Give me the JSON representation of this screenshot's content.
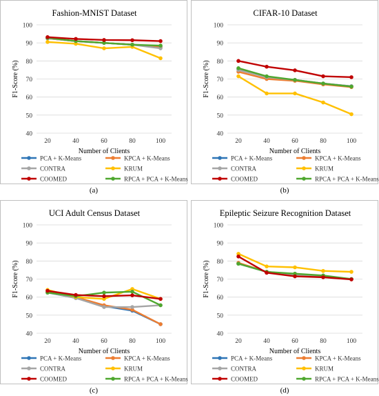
{
  "colors": {
    "PCA + K-Means": "#2e75b6",
    "KPCA + K-Means": "#ed7d31",
    "CONTRA": "#a5a5a5",
    "KRUM": "#ffc000",
    "COOMED": "#c00000",
    "RPCA + PCA + K-Means": "#4ea72e"
  },
  "legend_order": [
    "PCA + K-Means",
    "KPCA + K-Means",
    "CONTRA",
    "KRUM",
    "COOMED",
    "RPCA + PCA + K-Means"
  ],
  "chart_data": [
    {
      "type": "line",
      "caption": "(a)",
      "title": "Fashion-MNIST Dataset",
      "xlabel": "Number of Clients",
      "ylabel": "F1-Score (%)",
      "x": [
        20,
        40,
        60,
        80,
        100
      ],
      "ylim": [
        40,
        100
      ],
      "yticks": [
        40,
        50,
        60,
        70,
        80,
        90,
        100
      ],
      "grid": true,
      "legend": "bottom",
      "series": [
        {
          "name": "PCA + K-Means",
          "values": [
            92.5,
            91.0,
            90.0,
            89.0,
            88.0
          ]
        },
        {
          "name": "KPCA + K-Means",
          "values": [
            92.5,
            91.0,
            90.0,
            89.0,
            87.5
          ]
        },
        {
          "name": "CONTRA",
          "values": [
            92.5,
            91.0,
            90.0,
            89.0,
            87.0
          ]
        },
        {
          "name": "KRUM",
          "values": [
            90.5,
            89.5,
            87.0,
            87.8,
            81.5
          ]
        },
        {
          "name": "RPCA + PCA + K-Means",
          "values": [
            92.8,
            91.0,
            90.0,
            89.0,
            88.5
          ]
        },
        {
          "name": "COOMED",
          "values": [
            93.2,
            92.2,
            91.6,
            91.5,
            91.0
          ]
        }
      ]
    },
    {
      "type": "line",
      "caption": "(b)",
      "title": "CIFAR-10 Dataset",
      "xlabel": "Number of Clients",
      "ylabel": "F1-Score (%)",
      "x": [
        20,
        40,
        60,
        80,
        100
      ],
      "ylim": [
        40,
        100
      ],
      "yticks": [
        40,
        50,
        60,
        70,
        80,
        90,
        100
      ],
      "grid": true,
      "legend": "bottom",
      "series": [
        {
          "name": "PCA + K-Means",
          "values": [
            75.5,
            71.0,
            69.5,
            67.5,
            66.0
          ]
        },
        {
          "name": "KPCA + K-Means",
          "values": [
            74.0,
            70.0,
            69.0,
            67.0,
            65.5
          ]
        },
        {
          "name": "CONTRA",
          "values": [
            75.0,
            71.0,
            69.5,
            67.5,
            66.0
          ]
        },
        {
          "name": "KRUM",
          "values": [
            71.5,
            62.0,
            62.0,
            57.0,
            50.5
          ]
        },
        {
          "name": "RPCA + PCA + K-Means",
          "values": [
            76.0,
            71.5,
            69.5,
            67.5,
            65.8
          ]
        },
        {
          "name": "COOMED",
          "values": [
            80.0,
            76.8,
            74.8,
            71.5,
            71.0
          ]
        }
      ]
    },
    {
      "type": "line",
      "caption": "(c)",
      "title": "UCI Adult Census Dataset",
      "xlabel": "Number of Clients",
      "ylabel": "F1-Score (%)",
      "x": [
        20,
        40,
        60,
        80,
        100
      ],
      "ylim": [
        40,
        100
      ],
      "yticks": [
        40,
        50,
        60,
        70,
        80,
        90,
        100
      ],
      "grid": true,
      "legend": "bottom",
      "series": [
        {
          "name": "PCA + K-Means",
          "values": [
            62.5,
            59.5,
            55.0,
            52.5,
            45.0
          ]
        },
        {
          "name": "KPCA + K-Means",
          "values": [
            63.0,
            60.0,
            55.5,
            53.0,
            45.0
          ]
        },
        {
          "name": "CONTRA",
          "values": [
            62.5,
            59.5,
            54.5,
            54.5,
            55.5
          ]
        },
        {
          "name": "KRUM",
          "values": [
            64.0,
            60.0,
            59.0,
            64.5,
            59.0
          ]
        },
        {
          "name": "RPCA + PCA + K-Means",
          "values": [
            62.5,
            60.5,
            62.5,
            63.0,
            55.5
          ]
        },
        {
          "name": "COOMED",
          "values": [
            63.5,
            61.2,
            60.5,
            61.0,
            59.0
          ]
        }
      ]
    },
    {
      "type": "line",
      "caption": "(d)",
      "title": "Epileptic Seizure Recognition Dataset",
      "xlabel": "Number of Clients",
      "ylabel": "F1-Score (%)",
      "x": [
        20,
        40,
        60,
        80,
        100
      ],
      "ylim": [
        40,
        100
      ],
      "yticks": [
        40,
        50,
        60,
        70,
        80,
        90,
        100
      ],
      "grid": true,
      "legend": "bottom",
      "series": [
        {
          "name": "PCA + K-Means",
          "values": [
            78.5,
            74.0,
            72.5,
            71.5,
            70.0
          ]
        },
        {
          "name": "KPCA + K-Means",
          "values": [
            79.0,
            74.0,
            72.5,
            71.5,
            70.0
          ]
        },
        {
          "name": "CONTRA",
          "values": [
            78.5,
            74.0,
            72.5,
            71.5,
            70.0
          ]
        },
        {
          "name": "KRUM",
          "values": [
            84.0,
            77.0,
            76.5,
            74.5,
            74.0
          ]
        },
        {
          "name": "RPCA + PCA + K-Means",
          "values": [
            78.5,
            74.0,
            73.0,
            72.0,
            70.0
          ]
        },
        {
          "name": "COOMED",
          "values": [
            82.5,
            73.5,
            71.5,
            71.0,
            69.8
          ]
        }
      ]
    }
  ]
}
